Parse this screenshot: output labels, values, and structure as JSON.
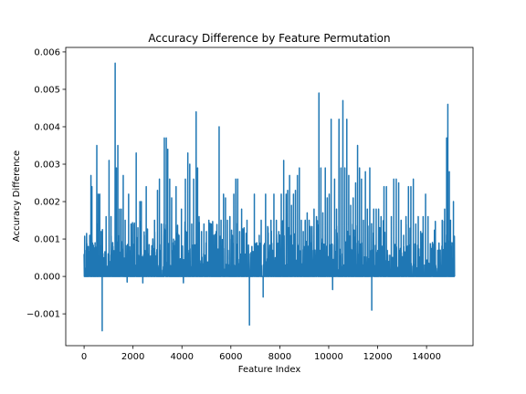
{
  "chart_data": {
    "type": "line",
    "title": "Accuracy Difference by Feature Permutation",
    "xlabel": "Feature Index",
    "ylabel": "Accuracy Difference",
    "xlim": [
      -750,
      15900
    ],
    "ylim": [
      -0.00185,
      0.00612
    ],
    "xticks": [
      0,
      2000,
      4000,
      6000,
      8000,
      10000,
      12000,
      14000
    ],
    "xtick_labels": [
      "0",
      "2000",
      "4000",
      "6000",
      "8000",
      "10000",
      "12000",
      "14000"
    ],
    "yticks": [
      -0.001,
      0.0,
      0.001,
      0.002,
      0.003,
      0.004,
      0.005,
      0.006
    ],
    "ytick_labels": [
      "−0.001",
      "0.000",
      "0.001",
      "0.002",
      "0.003",
      "0.004",
      "0.005",
      "0.006"
    ],
    "grid": false,
    "color": "#1f77b4",
    "n_points": 15150,
    "spikes": [
      {
        "x": 10,
        "y": 0.0002
      },
      {
        "x": 90,
        "y": 0.0007
      },
      {
        "x": 170,
        "y": 0.0008
      },
      {
        "x": 230,
        "y": 0.0011
      },
      {
        "x": 280,
        "y": 0.0027
      },
      {
        "x": 320,
        "y": 0.0024
      },
      {
        "x": 380,
        "y": 0.0006
      },
      {
        "x": 450,
        "y": 0.0009
      },
      {
        "x": 520,
        "y": 0.0035
      },
      {
        "x": 580,
        "y": 0.0022
      },
      {
        "x": 640,
        "y": 0.0022
      },
      {
        "x": 700,
        "y": 0.0012
      },
      {
        "x": 740,
        "y": -0.00145
      },
      {
        "x": 800,
        "y": 0.0005
      },
      {
        "x": 900,
        "y": 0.0016
      },
      {
        "x": 1020,
        "y": 0.0031
      },
      {
        "x": 1100,
        "y": 0.0016
      },
      {
        "x": 1180,
        "y": 0.0008
      },
      {
        "x": 1270,
        "y": 0.0057
      },
      {
        "x": 1320,
        "y": 0.0029
      },
      {
        "x": 1380,
        "y": 0.0035
      },
      {
        "x": 1450,
        "y": 0.0018
      },
      {
        "x": 1520,
        "y": 0.0018
      },
      {
        "x": 1600,
        "y": 0.0027
      },
      {
        "x": 1680,
        "y": 0.0015
      },
      {
        "x": 1760,
        "y": -0.00015
      },
      {
        "x": 1820,
        "y": 0.0022
      },
      {
        "x": 1920,
        "y": 0.0014
      },
      {
        "x": 2050,
        "y": 0.0013
      },
      {
        "x": 2130,
        "y": 0.0033
      },
      {
        "x": 2200,
        "y": 0.0013
      },
      {
        "x": 2280,
        "y": 0.002
      },
      {
        "x": 2340,
        "y": 0.002
      },
      {
        "x": 2400,
        "y": -0.00017
      },
      {
        "x": 2460,
        "y": 0.0011
      },
      {
        "x": 2540,
        "y": 0.0024
      },
      {
        "x": 2640,
        "y": 0.0003
      },
      {
        "x": 2760,
        "y": 0.0007
      },
      {
        "x": 2880,
        "y": 0.0015
      },
      {
        "x": 3000,
        "y": 0.0023
      },
      {
        "x": 3080,
        "y": 0.0026
      },
      {
        "x": 3160,
        "y": 0.0014
      },
      {
        "x": 3280,
        "y": 0.0037
      },
      {
        "x": 3360,
        "y": 0.0037
      },
      {
        "x": 3420,
        "y": 0.0034
      },
      {
        "x": 3500,
        "y": 0.0026
      },
      {
        "x": 3580,
        "y": 0.0021
      },
      {
        "x": 3660,
        "y": 0.001
      },
      {
        "x": 3760,
        "y": 0.0024
      },
      {
        "x": 3880,
        "y": 0.0011
      },
      {
        "x": 3980,
        "y": 0.0018
      },
      {
        "x": 4060,
        "y": -0.00017
      },
      {
        "x": 4140,
        "y": 0.0026
      },
      {
        "x": 4240,
        "y": 0.0033
      },
      {
        "x": 4320,
        "y": 0.003
      },
      {
        "x": 4400,
        "y": 0.0014
      },
      {
        "x": 4480,
        "y": 0.0026
      },
      {
        "x": 4580,
        "y": 0.0044
      },
      {
        "x": 4640,
        "y": 0.0029
      },
      {
        "x": 4700,
        "y": 0.0016
      },
      {
        "x": 4800,
        "y": 0.0012
      },
      {
        "x": 4900,
        "y": 0.0014
      },
      {
        "x": 5000,
        "y": 0.0012
      },
      {
        "x": 5100,
        "y": 0.0015
      },
      {
        "x": 5200,
        "y": 0.0014
      },
      {
        "x": 5300,
        "y": 0.0011
      },
      {
        "x": 5400,
        "y": 0.0012
      },
      {
        "x": 5520,
        "y": 0.004
      },
      {
        "x": 5600,
        "y": 0.0015
      },
      {
        "x": 5700,
        "y": 0.0022
      },
      {
        "x": 5780,
        "y": 0.0021
      },
      {
        "x": 5860,
        "y": 0.0015
      },
      {
        "x": 5960,
        "y": 0.0016
      },
      {
        "x": 6060,
        "y": 0.0011
      },
      {
        "x": 6120,
        "y": 0.0022
      },
      {
        "x": 6200,
        "y": 0.0026
      },
      {
        "x": 6280,
        "y": 0.0026
      },
      {
        "x": 6360,
        "y": 0.0012
      },
      {
        "x": 6440,
        "y": 0.0018
      },
      {
        "x": 6540,
        "y": 0.0013
      },
      {
        "x": 6660,
        "y": 0.0015
      },
      {
        "x": 6760,
        "y": -0.0013
      },
      {
        "x": 6860,
        "y": 0.0008
      },
      {
        "x": 6960,
        "y": 0.0022
      },
      {
        "x": 7060,
        "y": 0.0009
      },
      {
        "x": 7160,
        "y": 0.0011
      },
      {
        "x": 7240,
        "y": 0.0015
      },
      {
        "x": 7320,
        "y": -0.00055
      },
      {
        "x": 7420,
        "y": 0.0022
      },
      {
        "x": 7520,
        "y": 0.0013
      },
      {
        "x": 7640,
        "y": 0.0015
      },
      {
        "x": 7760,
        "y": 0.0022
      },
      {
        "x": 7860,
        "y": 0.0015
      },
      {
        "x": 7960,
        "y": 0.0012
      },
      {
        "x": 8060,
        "y": 0.0022
      },
      {
        "x": 8160,
        "y": 0.0031
      },
      {
        "x": 8260,
        "y": 0.0022
      },
      {
        "x": 8320,
        "y": 0.0023
      },
      {
        "x": 8400,
        "y": 0.0027
      },
      {
        "x": 8480,
        "y": 0.0019
      },
      {
        "x": 8560,
        "y": 0.0022
      },
      {
        "x": 8640,
        "y": 0.0023
      },
      {
        "x": 8720,
        "y": 0.0027
      },
      {
        "x": 8800,
        "y": 0.0029
      },
      {
        "x": 8880,
        "y": 0.0015
      },
      {
        "x": 8960,
        "y": 0.0012
      },
      {
        "x": 9040,
        "y": 0.0015
      },
      {
        "x": 9120,
        "y": 0.0017
      },
      {
        "x": 9200,
        "y": 0.0015
      },
      {
        "x": 9300,
        "y": 0.0009
      },
      {
        "x": 9400,
        "y": 0.0018
      },
      {
        "x": 9500,
        "y": 0.0016
      },
      {
        "x": 9600,
        "y": 0.0049
      },
      {
        "x": 9680,
        "y": 0.0029
      },
      {
        "x": 9760,
        "y": 0.0017
      },
      {
        "x": 9860,
        "y": 0.0029
      },
      {
        "x": 9940,
        "y": 0.0021
      },
      {
        "x": 10020,
        "y": 0.0022
      },
      {
        "x": 10100,
        "y": 0.0042
      },
      {
        "x": 10160,
        "y": -0.00035
      },
      {
        "x": 10240,
        "y": 0.0026
      },
      {
        "x": 10320,
        "y": 0.0018
      },
      {
        "x": 10420,
        "y": 0.0042
      },
      {
        "x": 10500,
        "y": 0.0029
      },
      {
        "x": 10580,
        "y": 0.0047
      },
      {
        "x": 10660,
        "y": 0.0029
      },
      {
        "x": 10740,
        "y": 0.0042
      },
      {
        "x": 10820,
        "y": 0.0027
      },
      {
        "x": 10900,
        "y": 0.0019
      },
      {
        "x": 11000,
        "y": 0.0021
      },
      {
        "x": 11100,
        "y": 0.0025
      },
      {
        "x": 11180,
        "y": 0.0035
      },
      {
        "x": 11260,
        "y": 0.0029
      },
      {
        "x": 11340,
        "y": 0.0026
      },
      {
        "x": 11420,
        "y": 0.0015
      },
      {
        "x": 11500,
        "y": 0.0028
      },
      {
        "x": 11580,
        "y": 0.0018
      },
      {
        "x": 11680,
        "y": 0.0029
      },
      {
        "x": 11760,
        "y": -0.0009
      },
      {
        "x": 11840,
        "y": 0.0018
      },
      {
        "x": 11940,
        "y": 0.0018
      },
      {
        "x": 12040,
        "y": 0.0018
      },
      {
        "x": 12140,
        "y": 0.0016
      },
      {
        "x": 12260,
        "y": 0.0024
      },
      {
        "x": 12360,
        "y": 0.0024
      },
      {
        "x": 12460,
        "y": 0.0004
      },
      {
        "x": 12560,
        "y": 0.0016
      },
      {
        "x": 12660,
        "y": 0.0026
      },
      {
        "x": 12760,
        "y": 0.0026
      },
      {
        "x": 12860,
        "y": 0.0025
      },
      {
        "x": 12960,
        "y": 0.0015
      },
      {
        "x": 13060,
        "y": 0.0011
      },
      {
        "x": 13160,
        "y": 0.0016
      },
      {
        "x": 13260,
        "y": 0.0024
      },
      {
        "x": 13360,
        "y": 0.0024
      },
      {
        "x": 13460,
        "y": 0.0026
      },
      {
        "x": 13560,
        "y": 0.0014
      },
      {
        "x": 13660,
        "y": 0.0016
      },
      {
        "x": 13760,
        "y": 0.0012
      },
      {
        "x": 13860,
        "y": 0.0016
      },
      {
        "x": 13960,
        "y": 0.0022
      },
      {
        "x": 14060,
        "y": 0.0016
      },
      {
        "x": 14160,
        "y": 0.0008
      },
      {
        "x": 14260,
        "y": 0.0007
      },
      {
        "x": 14360,
        "y": 0.0014
      },
      {
        "x": 14460,
        "y": 0.0007
      },
      {
        "x": 14560,
        "y": 0.0006
      },
      {
        "x": 14640,
        "y": 0.0015
      },
      {
        "x": 14740,
        "y": 0.0018
      },
      {
        "x": 14820,
        "y": 0.0037
      },
      {
        "x": 14870,
        "y": 0.0046
      },
      {
        "x": 14930,
        "y": 0.0028
      },
      {
        "x": 14980,
        "y": 0.0015
      },
      {
        "x": 15040,
        "y": 0.0009
      },
      {
        "x": 15100,
        "y": 0.002
      }
    ]
  }
}
